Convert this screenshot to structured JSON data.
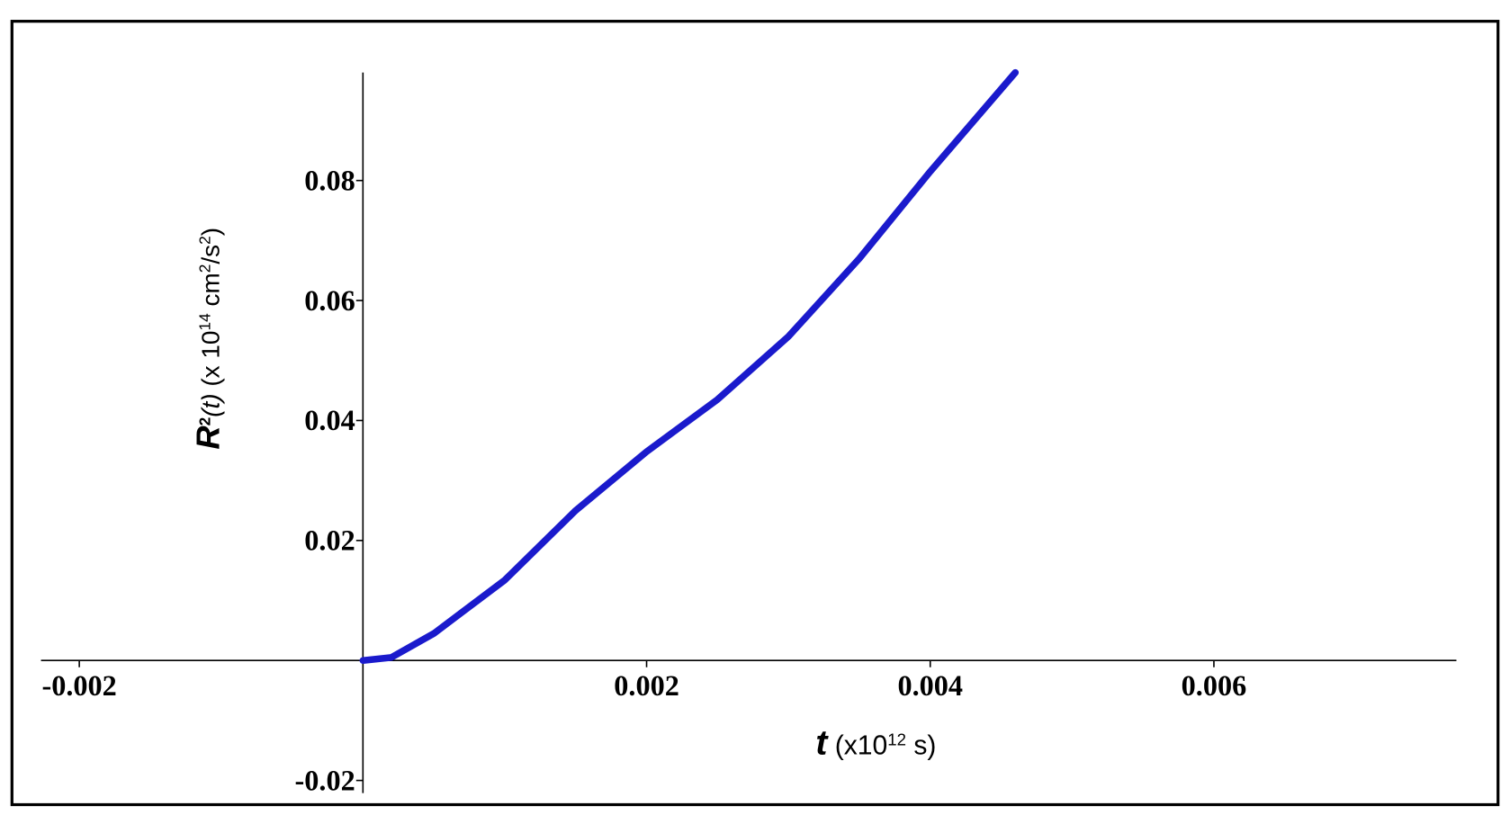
{
  "chart_data": {
    "type": "line",
    "x_label": [
      {
        "text": "t",
        "style": "bold-italic"
      },
      {
        "text": " (x10"
      },
      {
        "text": "12",
        "sup": true
      },
      {
        "text": " s)"
      }
    ],
    "y_label": [
      {
        "text": "R",
        "style": "bold-italic"
      },
      {
        "text": "2",
        "sup": true,
        "style": "bold"
      },
      {
        "text": "(t)",
        "style": "italic"
      },
      {
        "text": " (x 10"
      },
      {
        "text": "14",
        "sup": true
      },
      {
        "text": " cm"
      },
      {
        "text": "2",
        "sup": true
      },
      {
        "text": "/s"
      },
      {
        "text": "2",
        "sup": true
      },
      {
        "text": ")"
      }
    ],
    "x": [
      0,
      0.0002,
      0.0005,
      0.001,
      0.0015,
      0.002,
      0.0025,
      0.003,
      0.0035,
      0.004,
      0.0046
    ],
    "series": [
      {
        "color": "#1a1acc",
        "values": [
          0,
          0.0005,
          0.0045,
          0.0134,
          0.025,
          0.0348,
          0.0435,
          0.054,
          0.067,
          0.0815,
          0.098
        ]
      }
    ],
    "xlim": [
      -0.00227,
      0.00771
    ],
    "ylim": [
      -0.0221,
      0.098
    ],
    "xticks": [
      -0.002,
      0.002,
      0.004,
      0.006
    ],
    "yticks": [
      -0.02,
      0.02,
      0.04,
      0.06,
      0.08
    ],
    "grid": false
  }
}
